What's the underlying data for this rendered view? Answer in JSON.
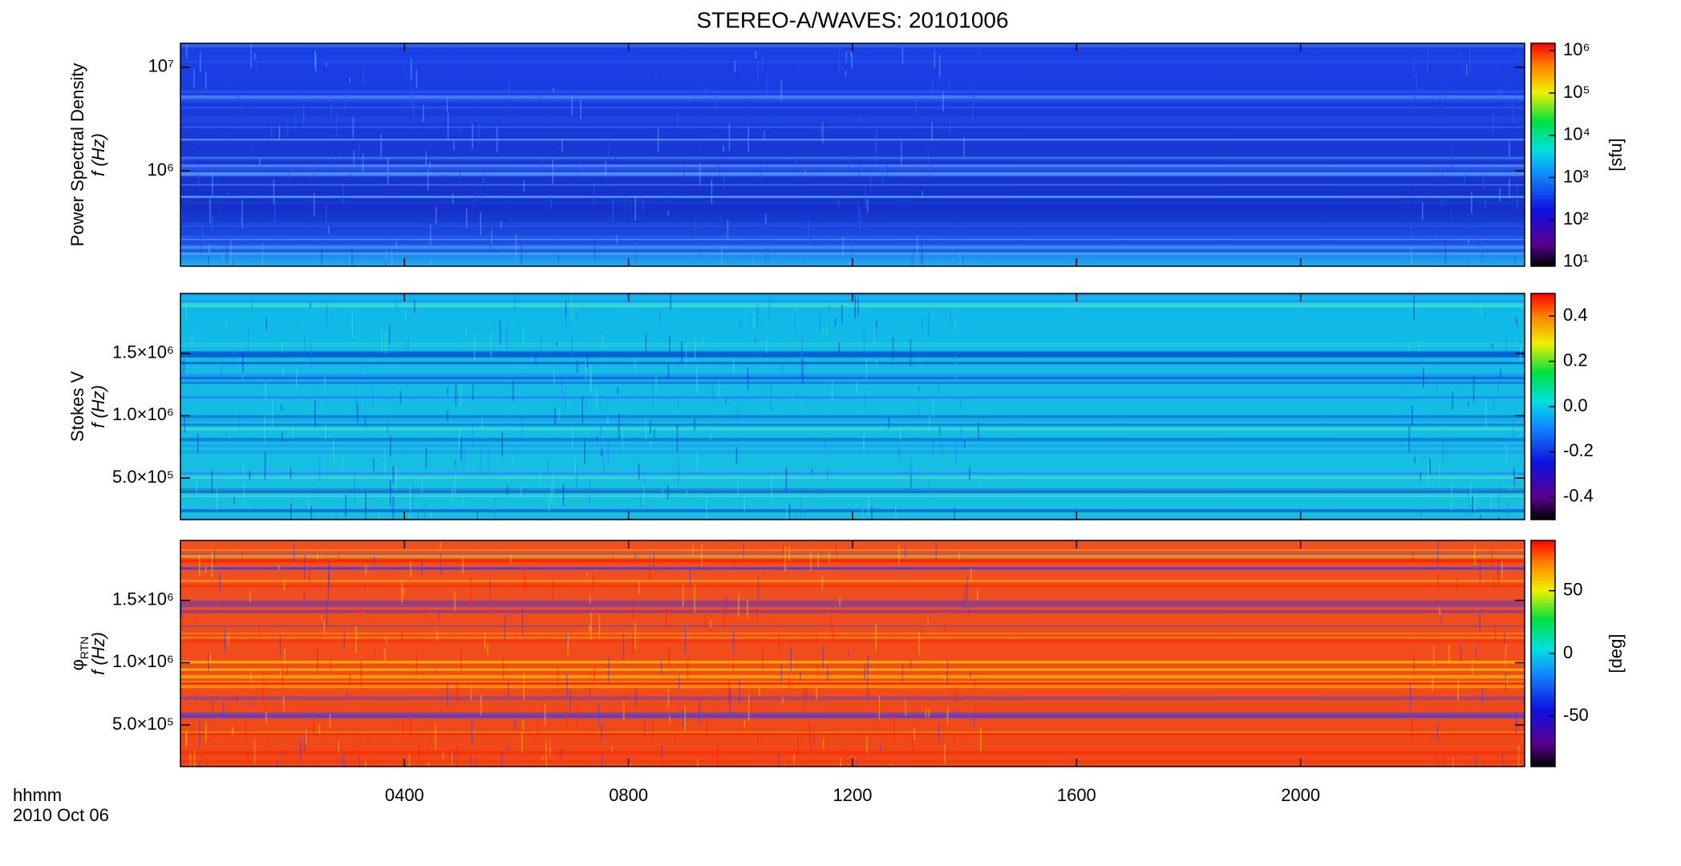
{
  "title": "STEREO-A/WAVES: 20101006",
  "xlabel": "hhmm",
  "xlabel2": "2010 Oct 06",
  "chart_data": [
    {
      "type": "heatmap",
      "ylabel": "Power Spectral Density",
      "ylabel2": "f (Hz)",
      "ylog": true,
      "ylim": [
        120000,
        17000000
      ],
      "yticks": [
        {
          "value": 1000000,
          "label": "10⁶"
        },
        {
          "value": 10000000,
          "label": "10⁷"
        }
      ],
      "clog": true,
      "clim": [
        8,
        1500000
      ],
      "cticks": [
        {
          "value": 10,
          "label": "10¹"
        },
        {
          "value": 100,
          "label": "10²"
        },
        {
          "value": 1000,
          "label": "10³"
        },
        {
          "value": 10000,
          "label": "10⁴"
        },
        {
          "value": 100000,
          "label": "10⁵"
        },
        {
          "value": 1000000,
          "label": "10⁶"
        }
      ],
      "clabel": "[sfu]"
    },
    {
      "type": "heatmap",
      "ylabel": "Stokes V",
      "ylabel2": "f (Hz)",
      "ylog": false,
      "ylim": [
        167000,
        1980000
      ],
      "yticks": [
        {
          "value": 500000,
          "label": "5.0×10⁵"
        },
        {
          "value": 1000000,
          "label": "1.0×10⁶"
        },
        {
          "value": 1500000,
          "label": "1.5×10⁶"
        }
      ],
      "clog": false,
      "clim": [
        -0.5,
        0.5
      ],
      "cticks": [
        {
          "value": -0.4,
          "label": "-0.4"
        },
        {
          "value": -0.2,
          "label": "-0.2"
        },
        {
          "value": 0,
          "label": "0.0"
        },
        {
          "value": 0.2,
          "label": "0.2"
        },
        {
          "value": 0.4,
          "label": "0.4"
        }
      ]
    },
    {
      "type": "heatmap",
      "ylabel": "φ",
      "ylabel_sub": "RTN",
      "ylabel2": "f (Hz)",
      "ylog": false,
      "ylim": [
        167000,
        1980000
      ],
      "yticks": [
        {
          "value": 500000,
          "label": "5.0×10⁵"
        },
        {
          "value": 1000000,
          "label": "1.0×10⁶"
        },
        {
          "value": 1500000,
          "label": "1.5×10⁶"
        }
      ],
      "clog": false,
      "clim": [
        -90,
        90
      ],
      "cticks": [
        -50,
        0,
        50
      ],
      "clabel": "[deg]",
      "xlim": [
        0,
        24
      ],
      "xticks": [
        {
          "value": 4,
          "label": "0400"
        },
        {
          "value": 8,
          "label": "0800"
        },
        {
          "value": 12,
          "label": "1200"
        },
        {
          "value": 16,
          "label": "1600"
        },
        {
          "value": 20,
          "label": "2000"
        }
      ]
    }
  ]
}
